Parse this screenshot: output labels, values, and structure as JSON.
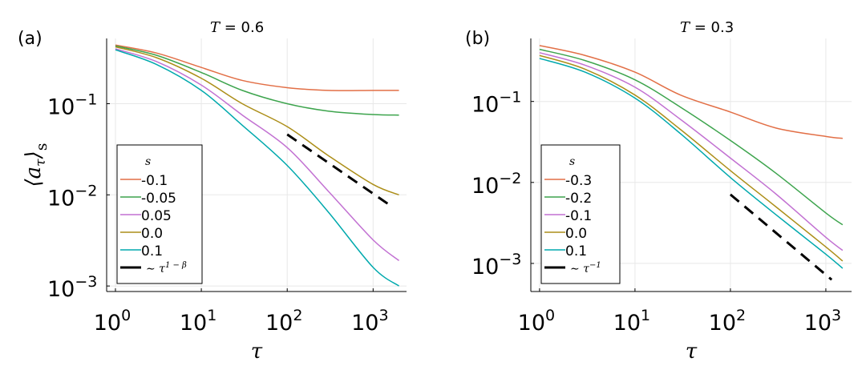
{
  "chart_data": [
    {
      "type": "line",
      "panel_label": "(a)",
      "title_var": "T",
      "title_eq": " = 0.6",
      "xlabel": "τ",
      "ylabel": "⟨a",
      "ylabel_sub": "τ",
      "ylabel_close": "⟩",
      "ylabel_outer_sub": "s",
      "xscale": "log",
      "yscale": "log",
      "xlim": [
        0.79,
        2450
      ],
      "ylim": [
        0.00087,
        0.52
      ],
      "xticks": [
        {
          "v": 1,
          "exp": "0"
        },
        {
          "v": 10,
          "exp": "1"
        },
        {
          "v": 100,
          "exp": "2"
        },
        {
          "v": 1000,
          "exp": "3"
        }
      ],
      "yticks": [
        {
          "v": 0.1,
          "exp": "−1"
        },
        {
          "v": 0.01,
          "exp": "−2"
        },
        {
          "v": 0.001,
          "exp": "−3"
        }
      ],
      "grid": true,
      "legend": {
        "title": "s",
        "placement": "bottom-left",
        "ref_label": "∼ τ",
        "ref_exp": "1 − β"
      },
      "x": [
        1,
        3,
        10,
        30,
        100,
        300,
        1000,
        2000
      ],
      "series": [
        {
          "name": "-0.1",
          "color": "#e26f46",
          "values": [
            0.44,
            0.36,
            0.25,
            0.18,
            0.15,
            0.14,
            0.14,
            0.14
          ]
        },
        {
          "name": "-0.05",
          "color": "#3da44d",
          "values": [
            0.43,
            0.34,
            0.22,
            0.14,
            0.1,
            0.083,
            0.076,
            0.075
          ]
        },
        {
          "name": "0.05",
          "color": "#c271d2",
          "values": [
            0.4,
            0.29,
            0.16,
            0.075,
            0.033,
            0.011,
            0.0032,
            0.0019
          ]
        },
        {
          "name": "0.0",
          "color": "#ac8e18",
          "values": [
            0.42,
            0.32,
            0.19,
            0.1,
            0.056,
            0.027,
            0.013,
            0.01
          ]
        },
        {
          "name": "0.1",
          "color": "#00a9ad",
          "values": [
            0.39,
            0.27,
            0.14,
            0.058,
            0.021,
            0.0065,
            0.0016,
            0.001
          ]
        }
      ],
      "reference": {
        "x": [
          100,
          1600
        ],
        "y": [
          0.046,
          0.0076
        ],
        "color": "#000000",
        "style": "dashed"
      }
    },
    {
      "type": "line",
      "panel_label": "(b)",
      "title_var": "T",
      "title_eq": " = 0.3",
      "xlabel": "τ",
      "xscale": "log",
      "yscale": "log",
      "xlim": [
        0.81,
        1860
      ],
      "ylim": [
        0.00045,
        0.6
      ],
      "xticks": [
        {
          "v": 1,
          "exp": "0"
        },
        {
          "v": 10,
          "exp": "1"
        },
        {
          "v": 100,
          "exp": "2"
        },
        {
          "v": 1000,
          "exp": "3"
        }
      ],
      "yticks": [
        {
          "v": 0.1,
          "exp": "−1"
        },
        {
          "v": 0.01,
          "exp": "−2"
        },
        {
          "v": 0.001,
          "exp": "−3"
        }
      ],
      "grid": true,
      "legend": {
        "title": "s",
        "placement": "bottom-left",
        "ref_label": "∼ τ",
        "ref_exp": "−1"
      },
      "x": [
        1,
        3,
        10,
        30,
        100,
        300,
        1000,
        1500
      ],
      "series": [
        {
          "name": "-0.3",
          "color": "#e26f46",
          "values": [
            0.49,
            0.37,
            0.23,
            0.12,
            0.074,
            0.047,
            0.037,
            0.035
          ]
        },
        {
          "name": "-0.2",
          "color": "#3da44d",
          "values": [
            0.44,
            0.32,
            0.185,
            0.085,
            0.033,
            0.013,
            0.0042,
            0.003
          ]
        },
        {
          "name": "-0.1",
          "color": "#c271d2",
          "values": [
            0.4,
            0.28,
            0.15,
            0.06,
            0.02,
            0.0072,
            0.0021,
            0.00145
          ]
        },
        {
          "name": "0.0",
          "color": "#ac8e18",
          "values": [
            0.37,
            0.25,
            0.12,
            0.045,
            0.014,
            0.005,
            0.0016,
            0.00107
          ]
        },
        {
          "name": "0.1",
          "color": "#00a9ad",
          "values": [
            0.34,
            0.23,
            0.11,
            0.04,
            0.0115,
            0.004,
            0.0013,
            0.00087
          ]
        }
      ],
      "reference": {
        "x": [
          100,
          1150
        ],
        "y": [
          0.0071,
          0.00063
        ],
        "color": "#000000",
        "style": "dashed"
      }
    }
  ]
}
